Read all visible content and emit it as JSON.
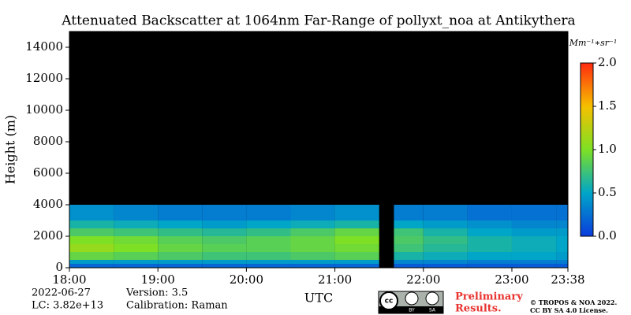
{
  "chart_data": {
    "type": "heatmap",
    "title": "Attenuated Backscatter at 1064nm Far-Range of pollyxt_noa at Antikythera",
    "xlabel": "UTC",
    "ylabel": "Height (m)",
    "xlim": [
      18,
      23.633
    ],
    "xticks": [
      {
        "value": 18,
        "label": "18:00"
      },
      {
        "value": 19,
        "label": "19:00"
      },
      {
        "value": 20,
        "label": "20:00"
      },
      {
        "value": 21,
        "label": "21:00"
      },
      {
        "value": 22,
        "label": "22:00"
      },
      {
        "value": 23,
        "label": "23:00"
      },
      {
        "value": 23.633,
        "label": "23:38"
      }
    ],
    "ylim": [
      0,
      15000
    ],
    "yticks": [
      0,
      2000,
      4000,
      6000,
      8000,
      10000,
      12000,
      14000
    ],
    "x_edges": [
      18,
      18.5,
      19,
      19.5,
      20,
      20.5,
      21,
      21.5,
      21.667,
      22,
      22.5,
      23,
      23.5,
      23.633
    ],
    "y_edges": [
      0,
      250,
      500,
      1000,
      1500,
      2000,
      2500,
      3000,
      4000
    ],
    "z": [
      [
        0.2,
        0.2,
        0.2,
        0.2,
        0.2,
        0.2,
        0.2,
        null,
        0.15,
        0.15,
        0.15,
        0.15,
        0.15
      ],
      [
        0.45,
        0.45,
        0.45,
        0.45,
        0.45,
        0.45,
        0.45,
        null,
        0.35,
        0.35,
        0.3,
        0.3,
        0.3
      ],
      [
        0.9,
        0.85,
        0.8,
        0.75,
        0.75,
        0.8,
        0.85,
        null,
        0.6,
        0.55,
        0.5,
        0.5,
        0.45
      ],
      [
        1.1,
        1.0,
        0.9,
        0.85,
        0.85,
        0.9,
        0.95,
        null,
        0.75,
        0.65,
        0.6,
        0.55,
        0.5
      ],
      [
        1.0,
        0.95,
        0.85,
        0.8,
        0.85,
        0.9,
        1.0,
        null,
        0.8,
        0.7,
        0.6,
        0.55,
        0.5
      ],
      [
        0.8,
        0.75,
        0.7,
        0.65,
        0.7,
        0.8,
        0.9,
        null,
        0.75,
        0.6,
        0.5,
        0.45,
        0.45
      ],
      [
        0.6,
        0.55,
        0.5,
        0.45,
        0.5,
        0.55,
        0.6,
        null,
        0.5,
        0.45,
        0.4,
        0.35,
        0.35
      ],
      [
        0.4,
        0.35,
        0.3,
        0.3,
        0.3,
        0.35,
        0.4,
        null,
        0.3,
        0.3,
        0.25,
        0.25,
        0.25
      ]
    ],
    "background": "#000000",
    "colormap": [
      "#0a3cdc",
      "#00a6c8",
      "#7ee024",
      "#f6c000",
      "#ff2a10"
    ],
    "clim": [
      0,
      2
    ],
    "cticks": [
      {
        "value": 0,
        "label": "0.0"
      },
      {
        "value": 0.5,
        "label": "0.5"
      },
      {
        "value": 1,
        "label": "1.0"
      },
      {
        "value": 1.5,
        "label": "1.5"
      },
      {
        "value": 2,
        "label": "2.0"
      }
    ],
    "clabel": "Mm⁻¹∗sr⁻¹",
    "date": "2022-06-27",
    "lc": "LC: 3.82e+13",
    "version": "Version: 3.5",
    "calibration": "Calibration: Raman",
    "logo_labels": [
      "BY",
      "SA"
    ],
    "notice": [
      "Preliminary",
      "Results."
    ],
    "license": [
      "© TROPOS & NOA 2022.",
      "CC BY SA 4.0 License."
    ]
  }
}
